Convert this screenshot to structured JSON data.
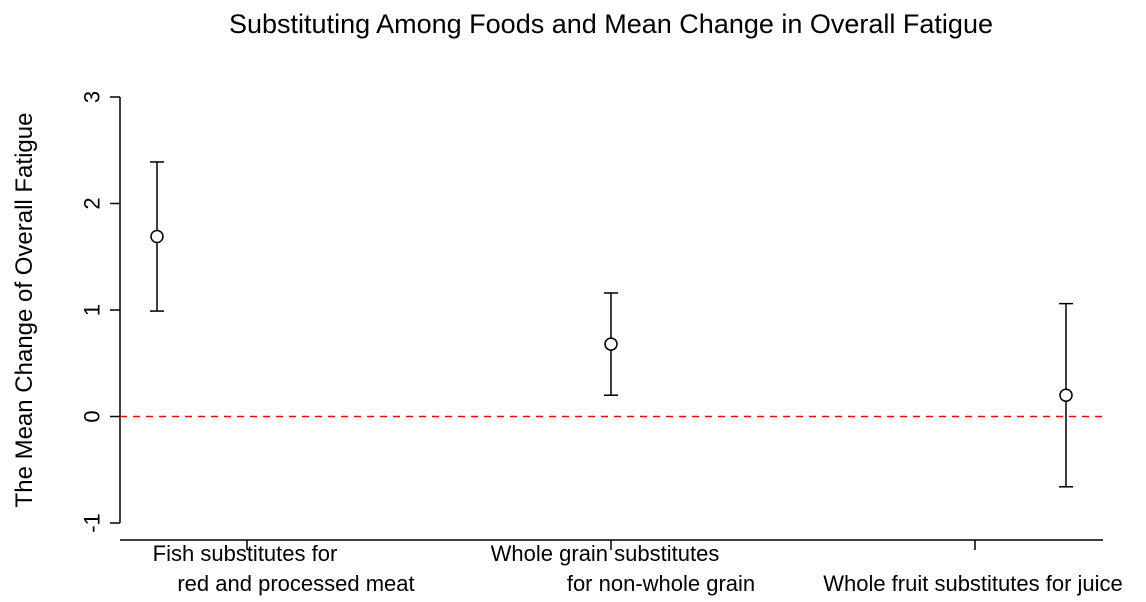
{
  "chart_data": {
    "type": "scatter",
    "title": "Substituting Among Foods and Mean Change in Overall Fatigue",
    "xlabel": "",
    "ylabel": "The Mean Change of Overall Fatigue",
    "ylim": [
      -1.2,
      3.3
    ],
    "yticks": [
      "-1",
      "0",
      "1",
      "2",
      "3"
    ],
    "categories": [
      {
        "line1": "Fish substitutes for",
        "line2": "red and processed meat"
      },
      {
        "line1": "Whole grain substitutes",
        "line2": "for non-whole grain"
      },
      {
        "line1": "",
        "line2": "Whole fruit substitutes for juice"
      }
    ],
    "points": [
      {
        "x": 1,
        "y": 1.69,
        "lower": 0.99,
        "upper": 2.39
      },
      {
        "x": 2,
        "y": 0.68,
        "lower": 0.2,
        "upper": 1.16
      },
      {
        "x": 3,
        "y": 0.2,
        "lower": -0.66,
        "upper": 1.06
      }
    ],
    "reference_line": {
      "y": 0,
      "color": "#ff0000",
      "style": "dashed"
    },
    "grid": false,
    "legend": "none"
  }
}
